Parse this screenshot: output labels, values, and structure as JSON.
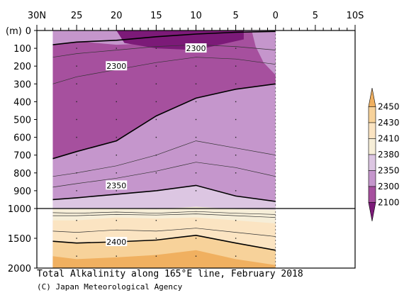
{
  "chart_data": {
    "type": "contour",
    "title": "Total Alkalinity along 165°E line, February 2018",
    "credit": "(C) Japan Meteorological Agency",
    "x_ticks": [
      "30N",
      "25",
      "20",
      "15",
      "10",
      "5",
      "0",
      "5",
      "10S"
    ],
    "y_unit_label": "(m)",
    "y_ticks_upper": [
      "0",
      "100",
      "200",
      "300",
      "400",
      "500",
      "600",
      "700",
      "800",
      "900",
      "1000"
    ],
    "y_ticks_lower": [
      "1500",
      "2000"
    ],
    "colorbar_levels": [
      "2450",
      "2430",
      "2410",
      "2380",
      "2350",
      "2300",
      "2100"
    ],
    "colorbar_colors": [
      "#f0b060",
      "#f7d29a",
      "#fbe4c2",
      "#f6eed8",
      "#dcc6e2",
      "#c596cc",
      "#a6509e",
      "#7c1a78"
    ],
    "contour_labels": [
      "2300",
      "2300",
      "2350",
      "2400"
    ],
    "data_extent": {
      "lat_north": 28,
      "lat_south": 0
    },
    "depth_range_m": [
      0,
      2000
    ],
    "depth_axis_break_m": 1000
  }
}
